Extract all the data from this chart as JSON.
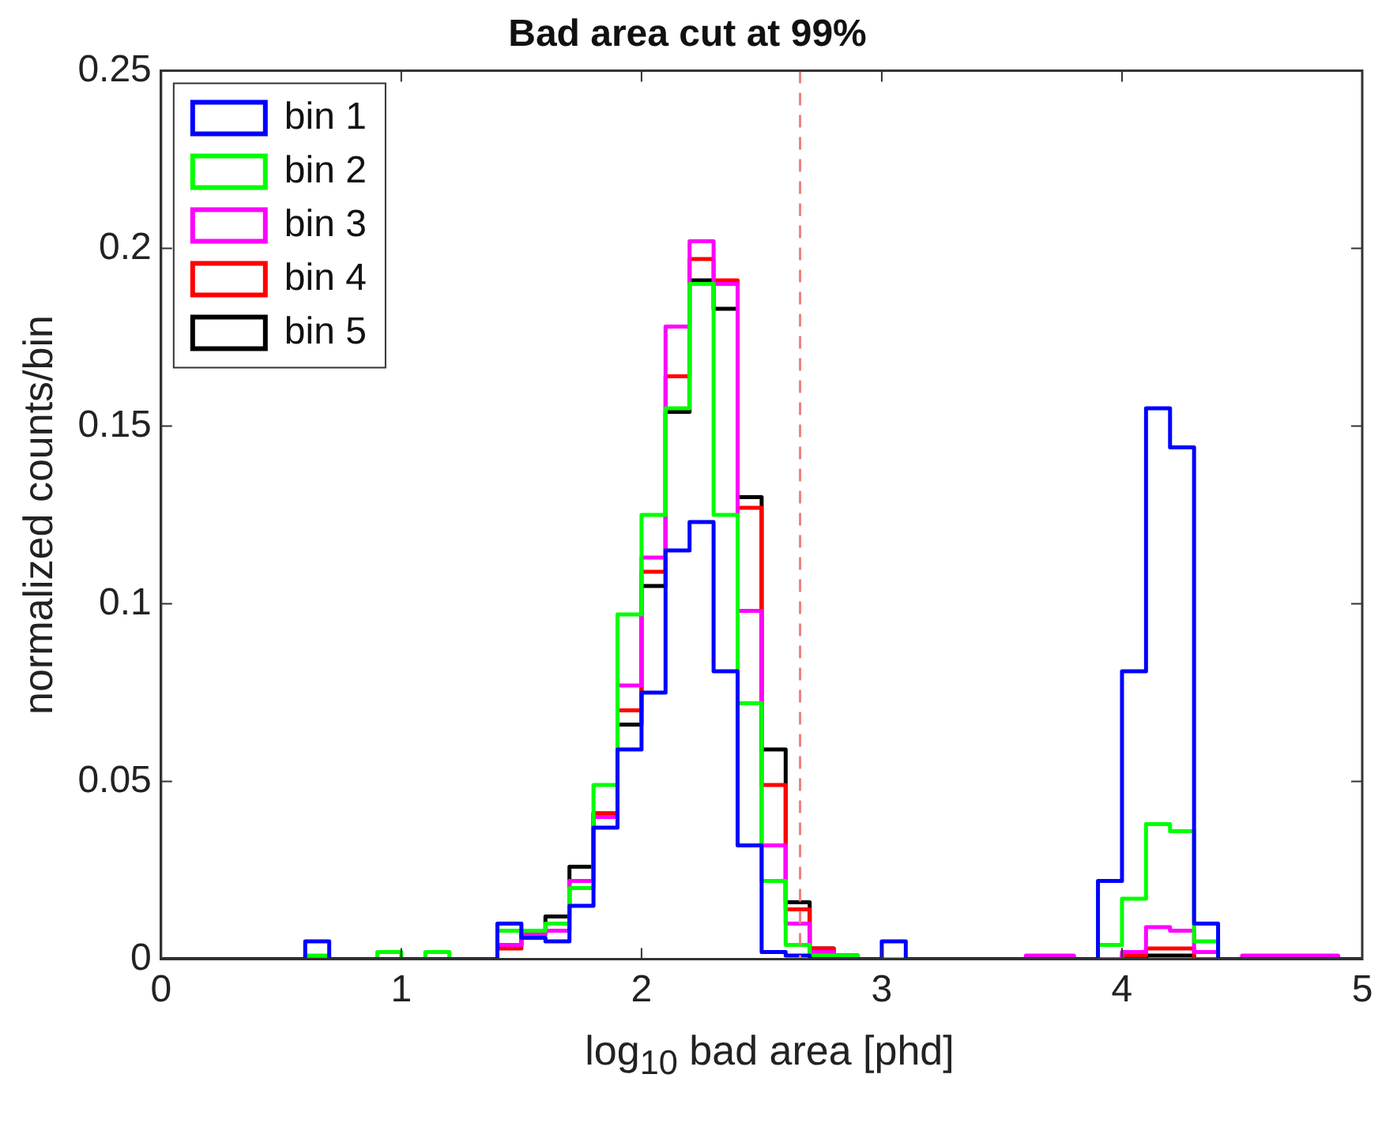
{
  "chart_data": {
    "type": "histogram",
    "title": "Bad area cut at 99%",
    "xlabel": "log$_{10}$ bad area [phd]",
    "ylabel": "normalized counts/bin",
    "bins": [
      0,
      0.1,
      0.2,
      0.3,
      0.4,
      0.5,
      0.6,
      0.7,
      0.8,
      0.9,
      1,
      1.1,
      1.2,
      1.3,
      1.4,
      1.5,
      1.6,
      1.7,
      1.8,
      1.9,
      2,
      2.1,
      2.2,
      2.3,
      2.4,
      2.5,
      2.6,
      2.7,
      2.8,
      2.9,
      3,
      3.1,
      3.2,
      3.3,
      3.4,
      3.5,
      3.6,
      3.7,
      3.8,
      3.9,
      4,
      4.1,
      4.2,
      4.3,
      4.4,
      4.5,
      4.6,
      4.7,
      4.8,
      4.9,
      5
    ],
    "series": [
      {
        "name": "bin 1",
        "color": "#0000ff",
        "values": [
          0,
          0,
          0,
          0,
          0,
          0,
          0.005,
          0,
          0,
          0,
          0,
          0,
          0,
          0,
          0.01,
          0.006,
          0.005,
          0.015,
          0.037,
          0.059,
          0.075,
          0.115,
          0.123,
          0.081,
          0.032,
          0.002,
          0.001,
          0,
          0,
          0,
          0.005,
          0,
          0,
          0,
          0,
          0,
          0,
          0,
          0,
          0.022,
          0.081,
          0.155,
          0.144,
          0.01,
          0,
          0,
          0,
          0,
          0,
          0
        ]
      },
      {
        "name": "bin 2",
        "color": "#00ff00",
        "values": [
          0,
          0,
          0,
          0,
          0,
          0,
          0.001,
          0,
          0,
          0.002,
          0,
          0.002,
          0,
          0,
          0.008,
          0.008,
          0.01,
          0.02,
          0.049,
          0.097,
          0.125,
          0.155,
          0.19,
          0.125,
          0.072,
          0.022,
          0.004,
          0.001,
          0.001,
          0,
          0,
          0,
          0,
          0,
          0,
          0,
          0,
          0,
          0,
          0.004,
          0.017,
          0.038,
          0.036,
          0.005,
          0,
          0,
          0,
          0,
          0,
          0
        ]
      },
      {
        "name": "bin 3",
        "color": "#ff00ff",
        "values": [
          0,
          0,
          0,
          0,
          0,
          0,
          0,
          0,
          0,
          0,
          0,
          0,
          0,
          0,
          0.004,
          0.007,
          0.008,
          0.022,
          0.04,
          0.077,
          0.113,
          0.178,
          0.202,
          0.19,
          0.098,
          0.032,
          0.01,
          0.002,
          0,
          0,
          0,
          0,
          0,
          0,
          0,
          0,
          0.001,
          0.001,
          0,
          0,
          0.002,
          0.009,
          0.008,
          0.002,
          0,
          0.001,
          0.001,
          0.001,
          0.001,
          0
        ]
      },
      {
        "name": "bin 4",
        "color": "#ff0000",
        "values": [
          0,
          0,
          0,
          0,
          0,
          0,
          0,
          0,
          0,
          0,
          0,
          0,
          0,
          0,
          0.003,
          0.008,
          0.008,
          0.022,
          0.041,
          0.07,
          0.109,
          0.164,
          0.197,
          0.191,
          0.127,
          0.049,
          0.014,
          0.003,
          0.001,
          0,
          0,
          0,
          0,
          0,
          0,
          0,
          0,
          0,
          0,
          0,
          0.001,
          0.003,
          0.003,
          0,
          0,
          0,
          0,
          0,
          0,
          0
        ]
      },
      {
        "name": "bin 5",
        "color": "#000000",
        "values": [
          0,
          0,
          0,
          0,
          0,
          0,
          0,
          0,
          0,
          0,
          0,
          0,
          0,
          0,
          0.004,
          0.007,
          0.012,
          0.026,
          0.041,
          0.066,
          0.105,
          0.154,
          0.191,
          0.183,
          0.13,
          0.059,
          0.016,
          0.003,
          0.001,
          0,
          0,
          0,
          0,
          0,
          0,
          0,
          0,
          0,
          0,
          0,
          0,
          0.001,
          0.001,
          0,
          0,
          0,
          0,
          0,
          0,
          0
        ]
      }
    ],
    "xlim": [
      0,
      5
    ],
    "xticks": [
      0,
      1,
      2,
      3,
      4,
      5
    ],
    "ylim": [
      0,
      0.25
    ],
    "yticks": [
      0,
      0.05,
      0.1,
      0.15,
      0.2,
      0.25
    ],
    "ref_lines": [
      {
        "axis": "x",
        "value": 2.66,
        "color": "#f08080",
        "line_style": "dashed"
      }
    ],
    "legend": "top left",
    "marker": "none",
    "line_style": "solid"
  }
}
